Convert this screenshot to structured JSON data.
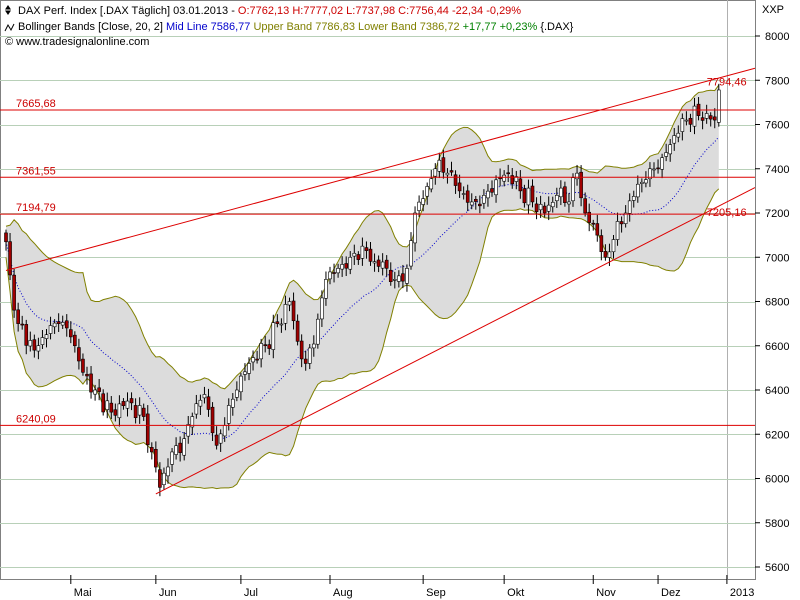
{
  "header": {
    "line1_name": "DAX Perf. Index [.DAX  Täglich] 03.01.2013 - ",
    "line1_ohlc": "O:7762,13 H:7777,02 L:7737,98 C:7756,44 -22,34 -0,29%",
    "bb_name": "Bollinger Bands [Close, 20, 2] ",
    "bb_mid": "Mid Line 7586,77 ",
    "bb_upper": "Upper Band 7786,83 ",
    "bb_lower": "Lower Band 7386,72 ",
    "bb_change": "+17,77 +0,23% ",
    "bb_symbol": "{.DAX}",
    "copyright": "© www.tradesignalonline.com"
  },
  "exchange_label": "XXP",
  "colors": {
    "up_candle": "#ffffff",
    "down_candle": "#a00000",
    "candle_outline": "#000000",
    "band_fill": "#dcdcdc",
    "band_line": "#808000",
    "mid_line": "#0000cc",
    "level_line": "#dd0000",
    "grid_line": "#b8d0b8",
    "ohlc_text": "#cc0000",
    "mid_text": "#0000cc",
    "upper_text": "#808000",
    "lower_text": "#808000",
    "change_text": "#008000"
  },
  "chart_data": {
    "type": "candlestick",
    "symbol": ".DAX",
    "interval": "daily",
    "y_axis": {
      "min": 5500,
      "max": 8100,
      "ticks": [
        5600,
        5800,
        6000,
        6200,
        6400,
        6600,
        6800,
        7000,
        7200,
        7400,
        7600,
        7800,
        8000
      ]
    },
    "x_axis": {
      "labels": [
        "Mai",
        "Jun",
        "Jul",
        "Aug",
        "Sep",
        "Okt",
        "Nov",
        "Dez",
        "2013"
      ]
    },
    "horizontal_levels": [
      {
        "label": "7665,68",
        "value": 7665.68
      },
      {
        "label": "7361,55",
        "value": 7361.55
      },
      {
        "label": "7194,79",
        "value": 7194.79
      },
      {
        "label": "6240,09",
        "value": 6240.09
      }
    ],
    "trendlines": [
      {
        "name": "upper trendline",
        "start": {
          "day": 0,
          "value": 6940
        },
        "end": {
          "day": 178,
          "value": 7820
        }
      },
      {
        "name": "lower trendline",
        "start": {
          "day": 37,
          "value": 5930
        },
        "end": {
          "day": 178,
          "value": 7250
        }
      }
    ],
    "trendline_labels": [
      {
        "label": "7794,46",
        "day": 176,
        "value": 7794.46
      },
      {
        "label": "7205,16",
        "day": 176,
        "value": 7205.16
      }
    ],
    "series_anchors": [
      {
        "day": 0,
        "close": 7070
      },
      {
        "day": 1,
        "close": 6920
      },
      {
        "day": 3,
        "close": 6700
      },
      {
        "day": 7,
        "close": 6580
      },
      {
        "day": 10,
        "close": 6650
      },
      {
        "day": 13,
        "close": 6700
      },
      {
        "day": 16,
        "close": 6640
      },
      {
        "day": 19,
        "close": 6480
      },
      {
        "day": 22,
        "close": 6400
      },
      {
        "day": 26,
        "close": 6300
      },
      {
        "day": 30,
        "close": 6350
      },
      {
        "day": 34,
        "close": 6280
      },
      {
        "day": 36,
        "close": 6120
      },
      {
        "day": 38,
        "close": 5960
      },
      {
        "day": 41,
        "close": 6120
      },
      {
        "day": 44,
        "close": 6180
      },
      {
        "day": 46,
        "close": 6280
      },
      {
        "day": 49,
        "close": 6380
      },
      {
        "day": 52,
        "close": 6150
      },
      {
        "day": 54,
        "close": 6240
      },
      {
        "day": 57,
        "close": 6400
      },
      {
        "day": 60,
        "close": 6520
      },
      {
        "day": 64,
        "close": 6600
      },
      {
        "day": 67,
        "close": 6700
      },
      {
        "day": 70,
        "close": 6800
      },
      {
        "day": 72,
        "close": 6620
      },
      {
        "day": 74,
        "close": 6520
      },
      {
        "day": 77,
        "close": 6720
      },
      {
        "day": 79,
        "close": 6900
      },
      {
        "day": 82,
        "close": 6950
      },
      {
        "day": 85,
        "close": 7000
      },
      {
        "day": 88,
        "close": 7050
      },
      {
        "day": 91,
        "close": 6980
      },
      {
        "day": 94,
        "close": 6950
      },
      {
        "day": 96,
        "close": 6900
      },
      {
        "day": 99,
        "close": 6950
      },
      {
        "day": 101,
        "close": 7200
      },
      {
        "day": 104,
        "close": 7320
      },
      {
        "day": 106,
        "close": 7400
      },
      {
        "day": 109,
        "close": 7380
      },
      {
        "day": 112,
        "close": 7300
      },
      {
        "day": 115,
        "close": 7250
      },
      {
        "day": 118,
        "close": 7280
      },
      {
        "day": 121,
        "close": 7350
      },
      {
        "day": 124,
        "close": 7380
      },
      {
        "day": 127,
        "close": 7300
      },
      {
        "day": 130,
        "close": 7250
      },
      {
        "day": 133,
        "close": 7200
      },
      {
        "day": 136,
        "close": 7280
      },
      {
        "day": 139,
        "close": 7250
      },
      {
        "day": 141,
        "close": 7380
      },
      {
        "day": 143,
        "close": 7200
      },
      {
        "day": 146,
        "close": 7100
      },
      {
        "day": 148,
        "close": 7000
      },
      {
        "day": 150,
        "close": 7080
      },
      {
        "day": 153,
        "close": 7200
      },
      {
        "day": 156,
        "close": 7330
      },
      {
        "day": 159,
        "close": 7400
      },
      {
        "day": 162,
        "close": 7450
      },
      {
        "day": 165,
        "close": 7550
      },
      {
        "day": 168,
        "close": 7620
      },
      {
        "day": 171,
        "close": 7640
      },
      {
        "day": 173,
        "close": 7650
      },
      {
        "day": 175,
        "close": 7620
      },
      {
        "day": 176,
        "close": 7756
      }
    ]
  }
}
